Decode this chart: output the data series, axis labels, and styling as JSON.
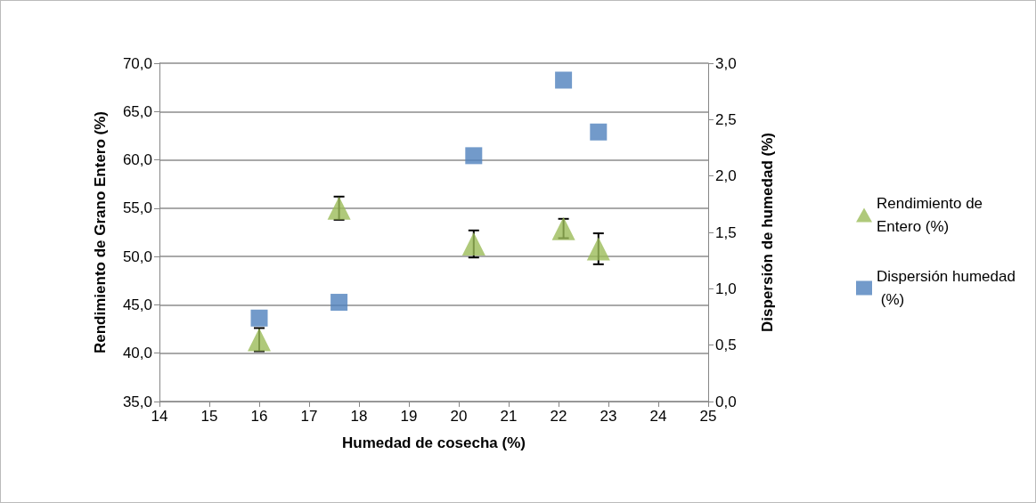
{
  "chart_data": {
    "type": "scatter",
    "xlabel": "Humedad de cosecha (%)",
    "ylabel": "Rendimiento de Grano Entero (%)",
    "y2label": "Dispersión de humedad (%)",
    "x": [
      16,
      17.6,
      20.3,
      22.1,
      22.8
    ],
    "series": [
      {
        "name": "Rendimiento de Entero (%)",
        "color": "#9bbb59",
        "marker": "triangle",
        "values": [
          41.4,
          55.0,
          51.3,
          52.9,
          50.8
        ],
        "errors": [
          1.2,
          1.2,
          1.4,
          1.0,
          1.6
        ]
      },
      {
        "name": "Dispersión humedad (%)",
        "color": "#4f81bd",
        "marker": "square",
        "axis": "y2",
        "values": [
          0.74,
          0.88,
          2.18,
          2.85,
          2.39
        ]
      }
    ],
    "xlim": [
      14,
      25
    ],
    "xticks": [
      14,
      15,
      16,
      17,
      18,
      19,
      20,
      21,
      22,
      23,
      24,
      25
    ],
    "ylim": [
      35,
      70
    ],
    "yticks": [
      {
        "value": 35,
        "label": "35,0"
      },
      {
        "value": 40,
        "label": "40,0"
      },
      {
        "value": 45,
        "label": "45,0"
      },
      {
        "value": 50,
        "label": "50,0"
      },
      {
        "value": 55,
        "label": "55,0"
      },
      {
        "value": 60,
        "label": "60,0"
      },
      {
        "value": 65,
        "label": "65,0"
      },
      {
        "value": 70,
        "label": "70,0"
      }
    ],
    "y2lim": [
      0,
      3
    ],
    "y2ticks": [
      {
        "value": 0,
        "label": "0,0"
      },
      {
        "value": 0.5,
        "label": "0,5"
      },
      {
        "value": 1,
        "label": "1,0"
      },
      {
        "value": 1.5,
        "label": "1,5"
      },
      {
        "value": 2,
        "label": "2,0"
      },
      {
        "value": 2.5,
        "label": "2,5"
      },
      {
        "value": 3,
        "label": "3,0"
      }
    ],
    "grid": "y",
    "legend": "right"
  }
}
